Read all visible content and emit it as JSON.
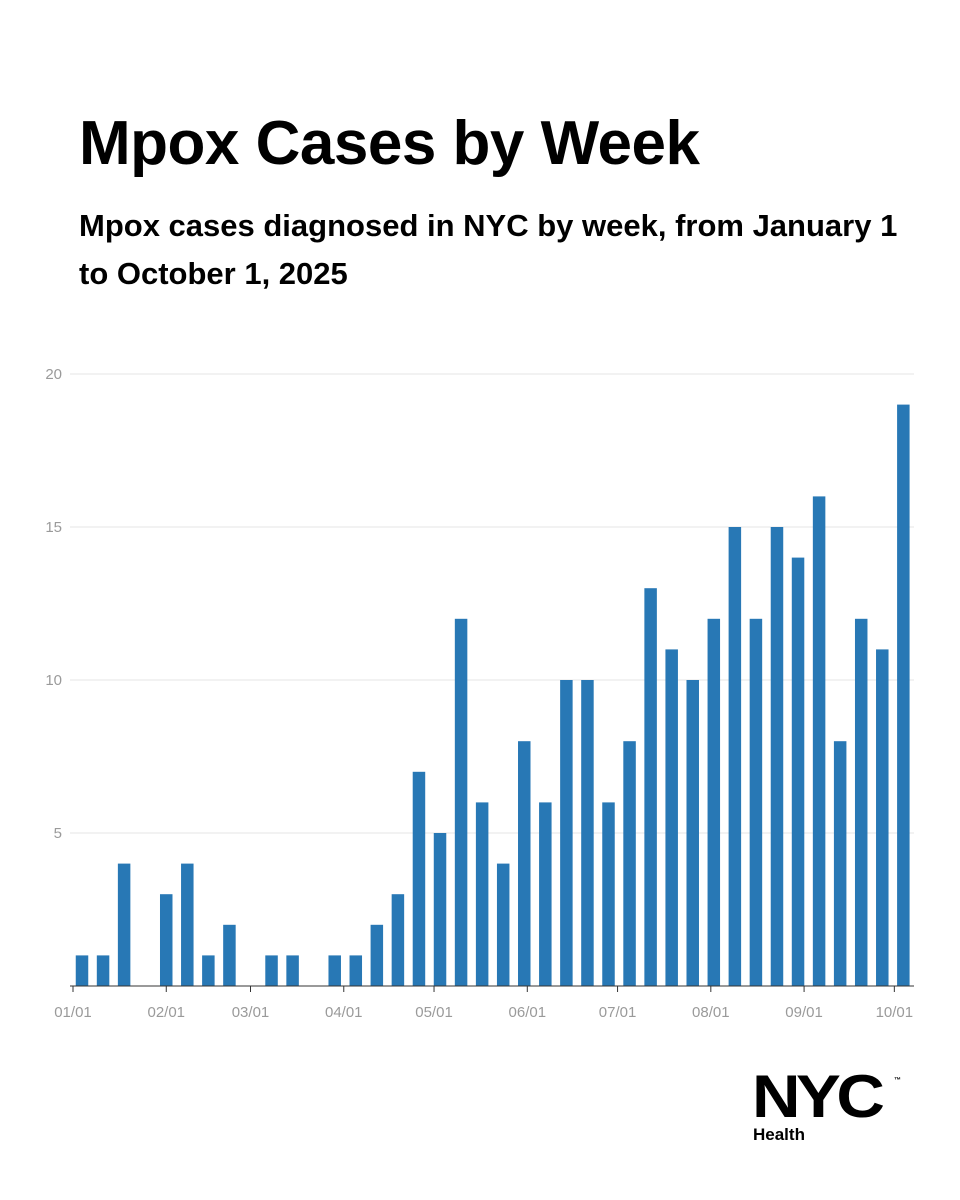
{
  "chart_data": {
    "type": "bar",
    "title": "Mpox Cases by Week",
    "subtitle": "Mpox cases diagnosed in NYC by week, from January 1 to October 1, 2025",
    "xlabel": "",
    "ylabel": "",
    "ylim": [
      0,
      20
    ],
    "y_ticks": [
      "5",
      "10",
      "15",
      "20"
    ],
    "x_ticks": [
      "01/01",
      "02/01",
      "03/01",
      "04/01",
      "05/01",
      "06/01",
      "07/01",
      "08/01",
      "09/01",
      "10/01"
    ],
    "values": [
      1,
      1,
      4,
      0,
      3,
      4,
      1,
      2,
      0,
      1,
      1,
      0,
      1,
      1,
      2,
      3,
      7,
      5,
      12,
      6,
      4,
      8,
      6,
      10,
      10,
      6,
      8,
      13,
      11,
      10,
      12,
      15,
      12,
      15,
      14,
      16,
      8,
      12,
      11,
      19
    ],
    "bar_color": "#2878b5",
    "grid": true
  },
  "logo": {
    "word": "NYC",
    "sub": "Health",
    "tm": "™"
  }
}
